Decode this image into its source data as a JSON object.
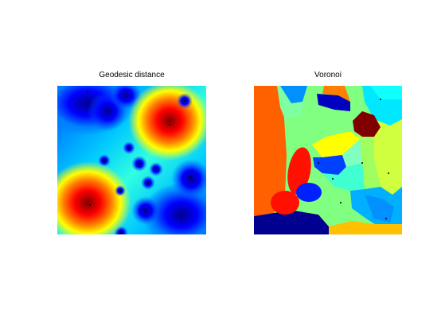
{
  "figure": {
    "left_panel_title": "Geodesic distance",
    "right_panel_title": "Voronoi"
  },
  "colors": {
    "jet_dark_blue": "#00008f",
    "jet_blue": "#0000ff",
    "jet_azure": "#0080ff",
    "jet_cyan": "#00ffff",
    "jet_yellow": "#ffff00",
    "jet_orange": "#ff8000",
    "jet_red": "#ff0000",
    "jet_dark_red": "#800000"
  }
}
